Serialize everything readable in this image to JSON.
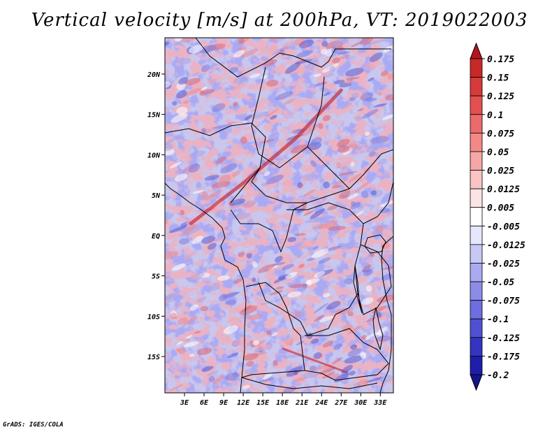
{
  "chart_data": {
    "type": "heatmap",
    "title": "Vertical velocity [m/s] at 200hPa, VT: 2019022003",
    "variable": "Vertical velocity",
    "units": "m/s",
    "level": "200hPa",
    "valid_time": "2019022003",
    "x_axis": {
      "range": [
        0,
        35
      ],
      "tick_values": [
        3,
        6,
        9,
        12,
        15,
        18,
        21,
        24,
        27,
        30,
        33
      ],
      "tick_labels": [
        "3E",
        "6E",
        "9E",
        "12E",
        "15E",
        "18E",
        "21E",
        "24E",
        "27E",
        "30E",
        "33E"
      ]
    },
    "y_axis": {
      "range": [
        -19.5,
        24.5
      ],
      "tick_values": [
        20,
        15,
        10,
        5,
        0,
        -5,
        -10,
        -15
      ],
      "tick_labels": [
        "20N",
        "15N",
        "10N",
        "5N",
        "EQ",
        "5S",
        "10S",
        "15S"
      ]
    },
    "colorbar": {
      "levels": [
        "0.175",
        "0.15",
        "0.125",
        "0.1",
        "0.075",
        "0.05",
        "0.025",
        "0.0125",
        "0.005",
        "-0.005",
        "-0.0125",
        "-0.025",
        "-0.05",
        "-0.075",
        "-0.1",
        "-0.125",
        "-0.175",
        "-0.2"
      ],
      "colors": [
        "#b4141e",
        "#c82828",
        "#d63a3a",
        "#e45050",
        "#ec6a6a",
        "#f28888",
        "#f6a6a6",
        "#fac4c4",
        "#fde4e4",
        "#ffffff",
        "#e6e6fc",
        "#c8c8f6",
        "#aaaaf0",
        "#8c8ce8",
        "#6e6ee0",
        "#5050d2",
        "#3434c0",
        "#1e1eaa",
        "#14148c"
      ]
    },
    "features": {
      "ascent_band": "narrow positive band running from about 4E,2N northeast to about 27E,18N",
      "grid": false
    }
  },
  "footer": {
    "credit": "GrADS: IGES/COLA"
  }
}
